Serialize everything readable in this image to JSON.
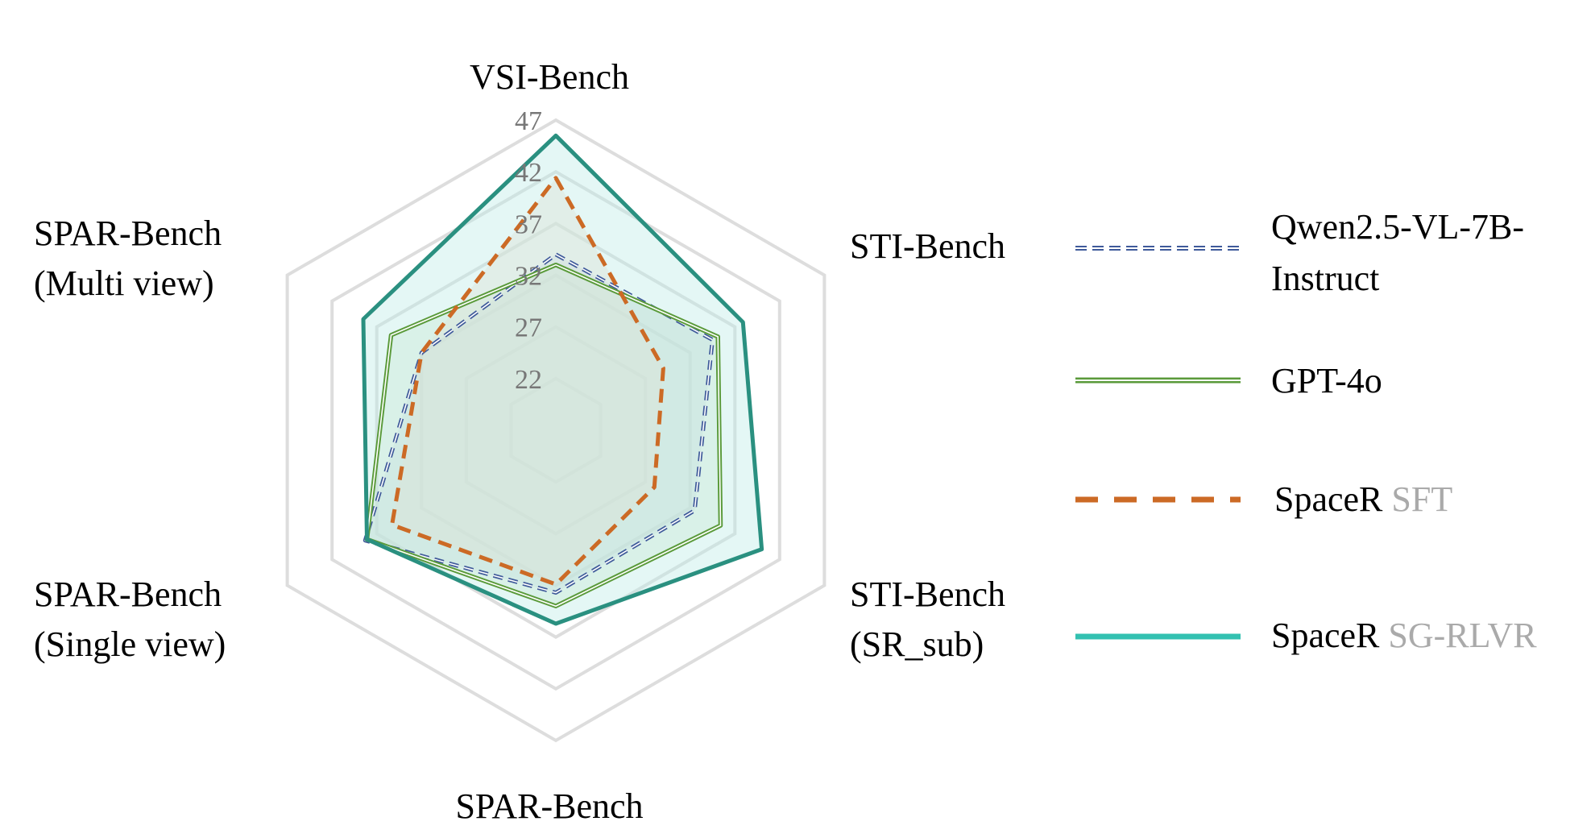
{
  "chart_data": {
    "type": "radar",
    "axes": [
      {
        "label": "VSI-Bench",
        "label_lines": [
          "VSI-Bench"
        ]
      },
      {
        "label": "STI-Bench",
        "label_lines": [
          "STI-Bench"
        ]
      },
      {
        "label": "STI-Bench (SR_sub)",
        "label_lines": [
          "STI-Bench",
          "(SR_sub)"
        ]
      },
      {
        "label": "SPAR-Bench",
        "label_lines": [
          "SPAR-Bench"
        ]
      },
      {
        "label": "SPAR-Bench (Single view)",
        "label_lines": [
          "SPAR-Bench",
          "(Single view)"
        ]
      },
      {
        "label": "SPAR-Bench (Multi view)",
        "label_lines": [
          "SPAR-Bench",
          "(Multi view)"
        ]
      }
    ],
    "rings": [
      22,
      27,
      32,
      37,
      42,
      47
    ],
    "ring_labels": [
      "22",
      "27",
      "32",
      "37",
      "42",
      "47"
    ],
    "range": [
      17,
      47
    ],
    "series": [
      {
        "name": "Qwen2.5-VL-7B-Instruct",
        "name_lines": [
          "Qwen2.5-VL-7B-",
          "Instruct"
        ],
        "name_suffix": "",
        "values": [
          34.0,
          34.5,
          32.5,
          32.7,
          38.3,
          32.0
        ],
        "color": "#3f5a9a",
        "style": "dashed-double",
        "fill": "#c7cde6"
      },
      {
        "name": "GPT-4o",
        "name_lines": [
          "GPT-4o"
        ],
        "name_suffix": "",
        "values": [
          33.0,
          35.1,
          35.4,
          34.0,
          38.1,
          35.4
        ],
        "color": "#5a9a3a",
        "style": "double",
        "fill": "#d2e6c8"
      },
      {
        "name": "SpaceR SFT",
        "name_lines": [
          "SpaceR"
        ],
        "name_suffix": "SFT",
        "values": [
          41.4,
          29.0,
          28.0,
          31.9,
          35.3,
          32.0
        ],
        "color": "#cc6a25",
        "style": "dashed",
        "fill": "#f3dcc8"
      },
      {
        "name": "SpaceR SG-RLVR",
        "name_lines": [
          "SpaceR"
        ],
        "name_suffix": "SG-RLVR",
        "values": [
          45.5,
          37.9,
          40.0,
          35.7,
          38.1,
          38.5
        ],
        "color": "#2a9080",
        "legend_color": "#33c1b1",
        "style": "solid",
        "fill": "#bfece6"
      }
    ],
    "legend_position": "right"
  }
}
